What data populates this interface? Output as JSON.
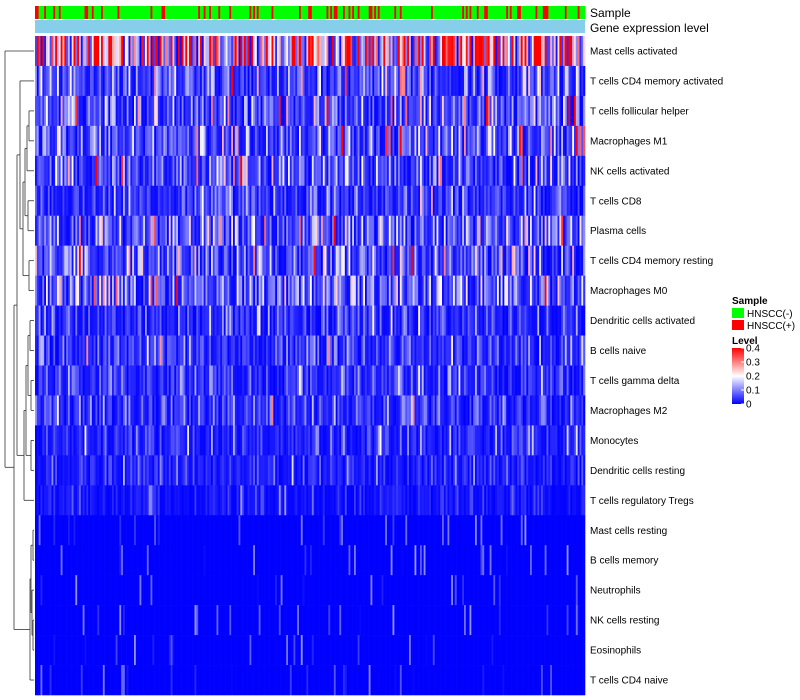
{
  "chart_data": {
    "type": "heatmap",
    "title": "",
    "annotations": {
      "top_labels": [
        "Sample",
        "Gene expression level"
      ]
    },
    "rows": [
      {
        "label": "Mast cells activated",
        "mean": 0.26
      },
      {
        "label": "T cells CD4 memory activated",
        "mean": 0.07
      },
      {
        "label": "T cells follicular helper",
        "mean": 0.09
      },
      {
        "label": "Macrophages M1",
        "mean": 0.08
      },
      {
        "label": "NK cells activated",
        "mean": 0.075
      },
      {
        "label": "T cells CD8",
        "mean": 0.05
      },
      {
        "label": "Plasma cells",
        "mean": 0.085
      },
      {
        "label": "T cells CD4 memory resting",
        "mean": 0.09
      },
      {
        "label": "Macrophages M0",
        "mean": 0.09
      },
      {
        "label": "Dendritic cells activated",
        "mean": 0.045
      },
      {
        "label": "B cells naive",
        "mean": 0.05
      },
      {
        "label": "T cells gamma delta",
        "mean": 0.045
      },
      {
        "label": "Macrophages M2",
        "mean": 0.045
      },
      {
        "label": "Monocytes",
        "mean": 0.035
      },
      {
        "label": "Dendritic cells resting",
        "mean": 0.03
      },
      {
        "label": "T cells regulatory  Tregs",
        "mean": 0.02
      },
      {
        "label": "Mast cells resting",
        "mean": 0.004
      },
      {
        "label": "B cells memory",
        "mean": 0.008
      },
      {
        "label": "Neutrophils",
        "mean": 0.012
      },
      {
        "label": "NK cells resting",
        "mean": 0.004
      },
      {
        "label": "Eosinophils",
        "mean": 0.004
      },
      {
        "label": "T cells CD4 naive",
        "mean": 0.01
      }
    ],
    "num_samples": 300,
    "color_scale": {
      "name": "Level",
      "min": 0,
      "max": 0.4,
      "ticks": [
        "0.4",
        "0.3",
        "0.2",
        "0.1",
        "0"
      ],
      "colors": [
        "#0000FF",
        "#FFFFFF",
        "#FF0000"
      ]
    },
    "sample_legend": {
      "title": "Sample",
      "items": [
        {
          "label": "HNSCC(-)",
          "color": "#00FF00"
        },
        {
          "label": "HNSCC(+)",
          "color": "#FF0000"
        }
      ]
    },
    "gene_expression_color": "#87CEEB",
    "dendrogram": "row clustering (left)"
  }
}
